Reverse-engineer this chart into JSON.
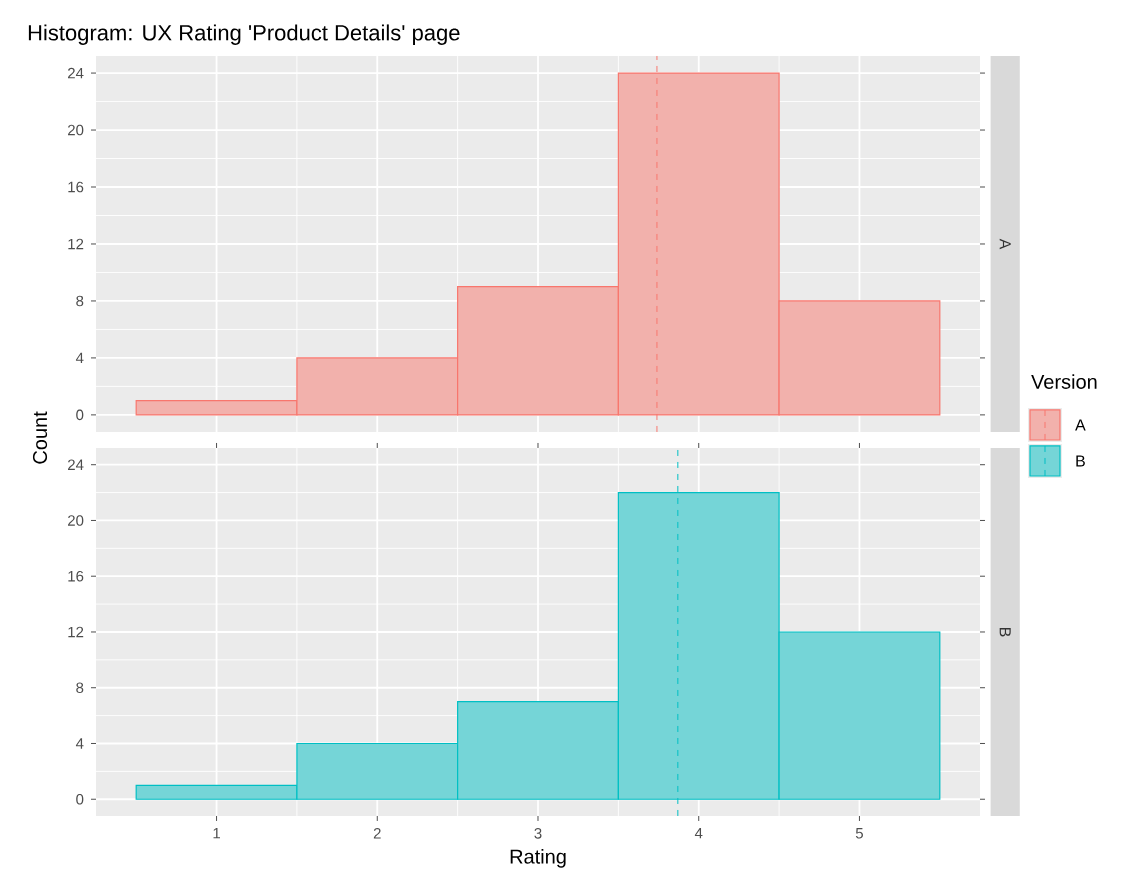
{
  "chart_data": [
    {
      "type": "histogram",
      "title": "Histogram: UX Rating 'Product Details' page",
      "ylabel": "Count",
      "legend_title": "Version",
      "legend": "right",
      "bins": [
        0.5,
        1.5,
        2.5,
        3.5,
        4.5,
        5.5
      ],
      "series": [
        {
          "name": "A",
          "color": "#f8766d",
          "values": [
            1,
            4,
            9,
            24,
            8
          ]
        }
      ],
      "ref_lines": [
        {
          "axis": "x",
          "value": 3.74,
          "color": "#f8766d",
          "line_style": "dashed"
        }
      ],
      "xlim": [
        0.25,
        5.75
      ],
      "ylim": [
        -1.2,
        25.2
      ],
      "xticks": [
        1,
        2,
        3,
        4,
        5
      ],
      "yticks": [
        0,
        4,
        8,
        12,
        16,
        20,
        24
      ],
      "grid": true,
      "tick_labels": "y"
    },
    {
      "type": "histogram",
      "xlabel": "Rating",
      "bins": [
        0.5,
        1.5,
        2.5,
        3.5,
        4.5,
        5.5
      ],
      "series": [
        {
          "name": "B",
          "color": "#00bfc4",
          "values": [
            1,
            4,
            7,
            22,
            12
          ]
        }
      ],
      "ref_lines": [
        {
          "axis": "x",
          "value": 3.87,
          "color": "#00bfc4",
          "line_style": "dashed"
        }
      ],
      "xlim": [
        0.25,
        5.75
      ],
      "ylim": [
        -1.2,
        25.2
      ],
      "xticks": [
        1,
        2,
        3,
        4,
        5
      ],
      "yticks": [
        0,
        4,
        8,
        12,
        16,
        20,
        24
      ],
      "grid": true
    }
  ]
}
